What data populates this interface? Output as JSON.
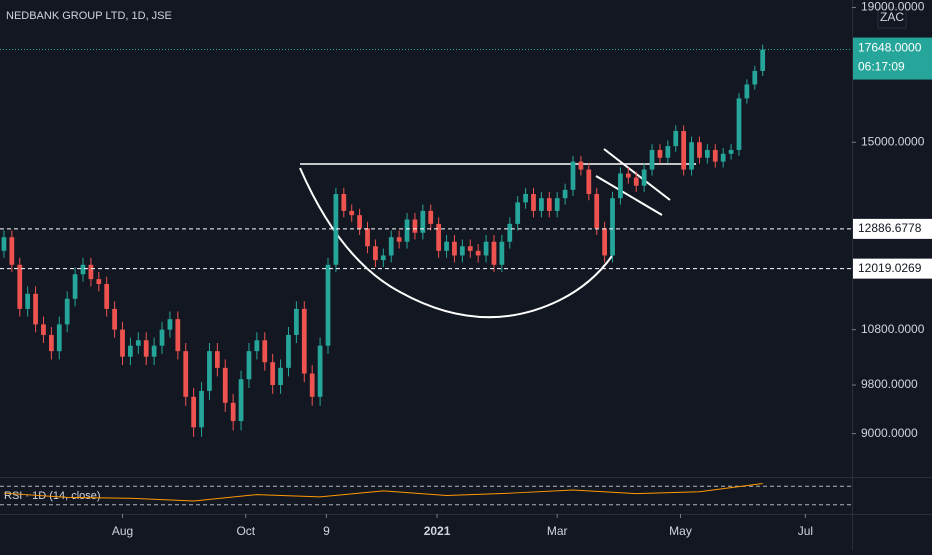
{
  "chart_data": {
    "type": "candlestick",
    "title": "NEDBANK GROUP LTD, 1D, JSE",
    "currency": "ZAC",
    "log_scale": true,
    "up_color": "#26a69a",
    "down_color": "#ef5350",
    "open": [
      12400,
      12700,
      12100,
      11200,
      11500,
      10900,
      10700,
      10400,
      10900,
      11400,
      11900,
      12100,
      11800,
      11700,
      11200,
      10800,
      10300,
      10500,
      10600,
      10300,
      10500,
      10800,
      11000,
      10400,
      9600,
      9100,
      9700,
      10400,
      10100,
      9500,
      9200,
      9900,
      10400,
      10600,
      10200,
      9800,
      10100,
      10700,
      11200,
      10000,
      9600,
      10500,
      12100,
      13700,
      13300,
      13200,
      12900,
      12500,
      12200,
      12300,
      12700,
      12600,
      13100,
      12800,
      13300,
      13000,
      12400,
      12600,
      12300,
      12500,
      12400,
      12300,
      12600,
      12100,
      12600,
      13000,
      13500,
      13700,
      13300,
      13600,
      13300,
      13600,
      13800,
      14500,
      14300,
      13700,
      12900,
      12300,
      13600,
      14200,
      14100,
      13900,
      14300,
      14800,
      14600,
      14900,
      15300,
      14300,
      15000,
      14600,
      14800,
      14500,
      14700,
      14800,
      16200,
      16600,
      17000
    ],
    "high": [
      12850,
      12850,
      12250,
      11650,
      11650,
      11050,
      10850,
      11050,
      11550,
      12050,
      12250,
      12250,
      11950,
      11850,
      11350,
      10950,
      10650,
      10750,
      10750,
      10650,
      10950,
      11150,
      11150,
      10550,
      9750,
      9850,
      10550,
      10550,
      10250,
      9650,
      10050,
      10550,
      10750,
      10750,
      10350,
      10250,
      10850,
      11350,
      11350,
      10150,
      10650,
      12250,
      13850,
      13850,
      13450,
      13350,
      13050,
      12650,
      12450,
      12850,
      12850,
      13250,
      13250,
      13450,
      13450,
      13150,
      12750,
      12750,
      12650,
      12650,
      12550,
      12750,
      12750,
      12750,
      13150,
      13650,
      13850,
      13850,
      13750,
      13750,
      13750,
      13950,
      14650,
      14650,
      14450,
      13850,
      13050,
      13750,
      14350,
      14350,
      14250,
      14450,
      14950,
      14950,
      15050,
      15450,
      15450,
      15150,
      15150,
      14950,
      14950,
      14850,
      14950,
      16350,
      16750,
      17150,
      17800
    ],
    "low": [
      12250,
      11950,
      11050,
      11050,
      10750,
      10550,
      10250,
      10250,
      10750,
      11250,
      11750,
      11650,
      11550,
      11050,
      10650,
      10150,
      10150,
      10350,
      10150,
      10150,
      10350,
      10650,
      10250,
      9450,
      8950,
      8950,
      9550,
      9950,
      9350,
      9050,
      9050,
      9750,
      10250,
      10050,
      9650,
      9650,
      9950,
      10550,
      9850,
      9450,
      9450,
      10350,
      11950,
      13150,
      13050,
      12750,
      12350,
      12050,
      12050,
      12150,
      12450,
      12450,
      12650,
      12650,
      12850,
      12250,
      12250,
      12150,
      12150,
      12250,
      12150,
      12150,
      11950,
      11950,
      12450,
      12850,
      13350,
      13150,
      13150,
      13150,
      13150,
      13450,
      13650,
      14150,
      13550,
      12750,
      12150,
      12150,
      13450,
      13950,
      13750,
      13750,
      14150,
      14450,
      14450,
      14750,
      14150,
      14150,
      14450,
      14450,
      14350,
      14350,
      14550,
      14650,
      16050,
      16450,
      16850
    ],
    "close": [
      12700,
      12100,
      11200,
      11500,
      10900,
      10700,
      10400,
      10900,
      11400,
      11900,
      12100,
      11800,
      11700,
      11200,
      10800,
      10300,
      10500,
      10600,
      10300,
      10500,
      10800,
      11000,
      10400,
      9600,
      9100,
      9700,
      10400,
      10100,
      9500,
      9200,
      9900,
      10400,
      10600,
      10200,
      9800,
      10100,
      10700,
      11200,
      10000,
      9600,
      10500,
      12100,
      13700,
      13300,
      13200,
      12900,
      12500,
      12200,
      12300,
      12700,
      12600,
      13100,
      12800,
      13300,
      13000,
      12400,
      12600,
      12300,
      12500,
      12400,
      12300,
      12600,
      12100,
      12600,
      13000,
      13500,
      13700,
      13300,
      13600,
      13300,
      13600,
      13800,
      14500,
      14300,
      13700,
      12900,
      12300,
      13600,
      14200,
      14100,
      13900,
      14300,
      14800,
      14600,
      14900,
      15300,
      14300,
      15000,
      14600,
      14800,
      14500,
      14700,
      14800,
      16200,
      16600,
      17000,
      17648
    ],
    "xlim": [
      -0.5,
      107.3
    ],
    "xticks": [
      {
        "value": 15,
        "label": "Aug"
      },
      {
        "value": 30.6,
        "label": "Oct"
      },
      {
        "value": 40.8,
        "label": "9"
      },
      {
        "value": 54.8,
        "label": "2021"
      },
      {
        "value": 70,
        "label": "Mar"
      },
      {
        "value": 85.6,
        "label": "May"
      },
      {
        "value": 101.4,
        "label": "Jul"
      }
    ],
    "ylim": [
      8370,
      19250
    ],
    "yticks": [
      {
        "value": 9000,
        "label": "9000.0000"
      },
      {
        "value": 9800,
        "label": "9800.0000"
      },
      {
        "value": 10800,
        "label": "10800.0000"
      },
      {
        "value": 15000,
        "label": "15000.0000"
      },
      {
        "value": 19000,
        "label": "19000.0000"
      }
    ],
    "levels": [
      {
        "value": 12886.6778,
        "label": "12886.6778"
      },
      {
        "value": 12019.0269,
        "label": "12019.0269"
      }
    ],
    "last_price": {
      "value": 17648,
      "label": "17648.0000",
      "countdown": "06:17:09"
    },
    "rsi": {
      "label": "RSI · 1D (14, close)",
      "x": [
        0,
        8,
        16,
        24,
        32,
        40,
        48,
        56,
        64,
        72,
        80,
        88,
        96
      ],
      "values": [
        55,
        46,
        44,
        38,
        52,
        47,
        60,
        50,
        55,
        62,
        54,
        58,
        76
      ],
      "ylim": [
        10,
        90
      ],
      "bands": [
        30,
        70
      ]
    }
  }
}
